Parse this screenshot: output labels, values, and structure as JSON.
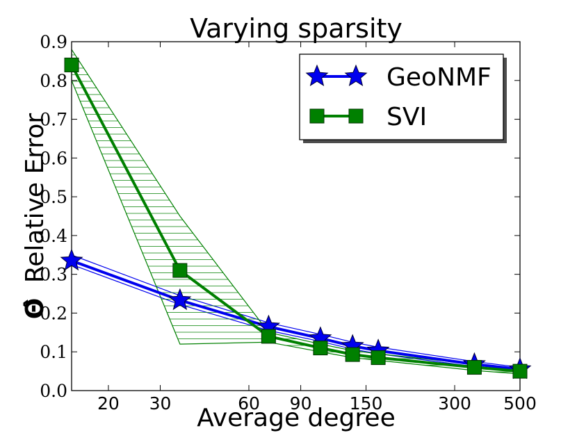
{
  "chart_data": {
    "type": "line",
    "title": "Varying sparsity",
    "xlabel": "Average degree",
    "ylabel_symbol": "Θ̂",
    "ylabel": "Relative Error",
    "x_scale": "log",
    "xlim": [
      15,
      500
    ],
    "ylim": [
      0.0,
      0.9
    ],
    "x_ticks": [
      20,
      30,
      60,
      90,
      150,
      300,
      500
    ],
    "x_tick_labels": [
      "20",
      "30",
      "60",
      "90",
      "150",
      "300",
      "500"
    ],
    "y_ticks": [
      0.0,
      0.1,
      0.2,
      0.3,
      0.4,
      0.5,
      0.6,
      0.7,
      0.8,
      0.9
    ],
    "y_tick_labels": [
      "0.0",
      "0.1",
      "0.2",
      "0.3",
      "0.4",
      "0.5",
      "0.6",
      "0.7",
      "0.8",
      "0.9"
    ],
    "x": [
      15,
      35,
      70,
      105,
      135,
      165,
      350,
      500
    ],
    "series": [
      {
        "name": "GeoNMF",
        "marker": "star",
        "color": "#0000ee",
        "values": [
          0.335,
          0.233,
          0.165,
          0.135,
          0.115,
          0.103,
          0.068,
          0.055
        ],
        "upper": [
          0.35,
          0.245,
          0.175,
          0.145,
          0.125,
          0.112,
          0.075,
          0.06
        ],
        "lower": [
          0.325,
          0.222,
          0.155,
          0.127,
          0.107,
          0.095,
          0.062,
          0.05
        ]
      },
      {
        "name": "SVI",
        "marker": "square",
        "color": "#008000",
        "values": [
          0.84,
          0.31,
          0.14,
          0.11,
          0.093,
          0.085,
          0.06,
          0.05
        ],
        "upper": [
          0.88,
          0.45,
          0.15,
          0.12,
          0.103,
          0.095,
          0.068,
          0.055
        ],
        "lower": [
          0.8,
          0.12,
          0.125,
          0.1,
          0.085,
          0.078,
          0.052,
          0.043
        ]
      }
    ],
    "legend": {
      "position": "top-right",
      "entries": [
        "GeoNMF",
        "SVI"
      ]
    }
  }
}
